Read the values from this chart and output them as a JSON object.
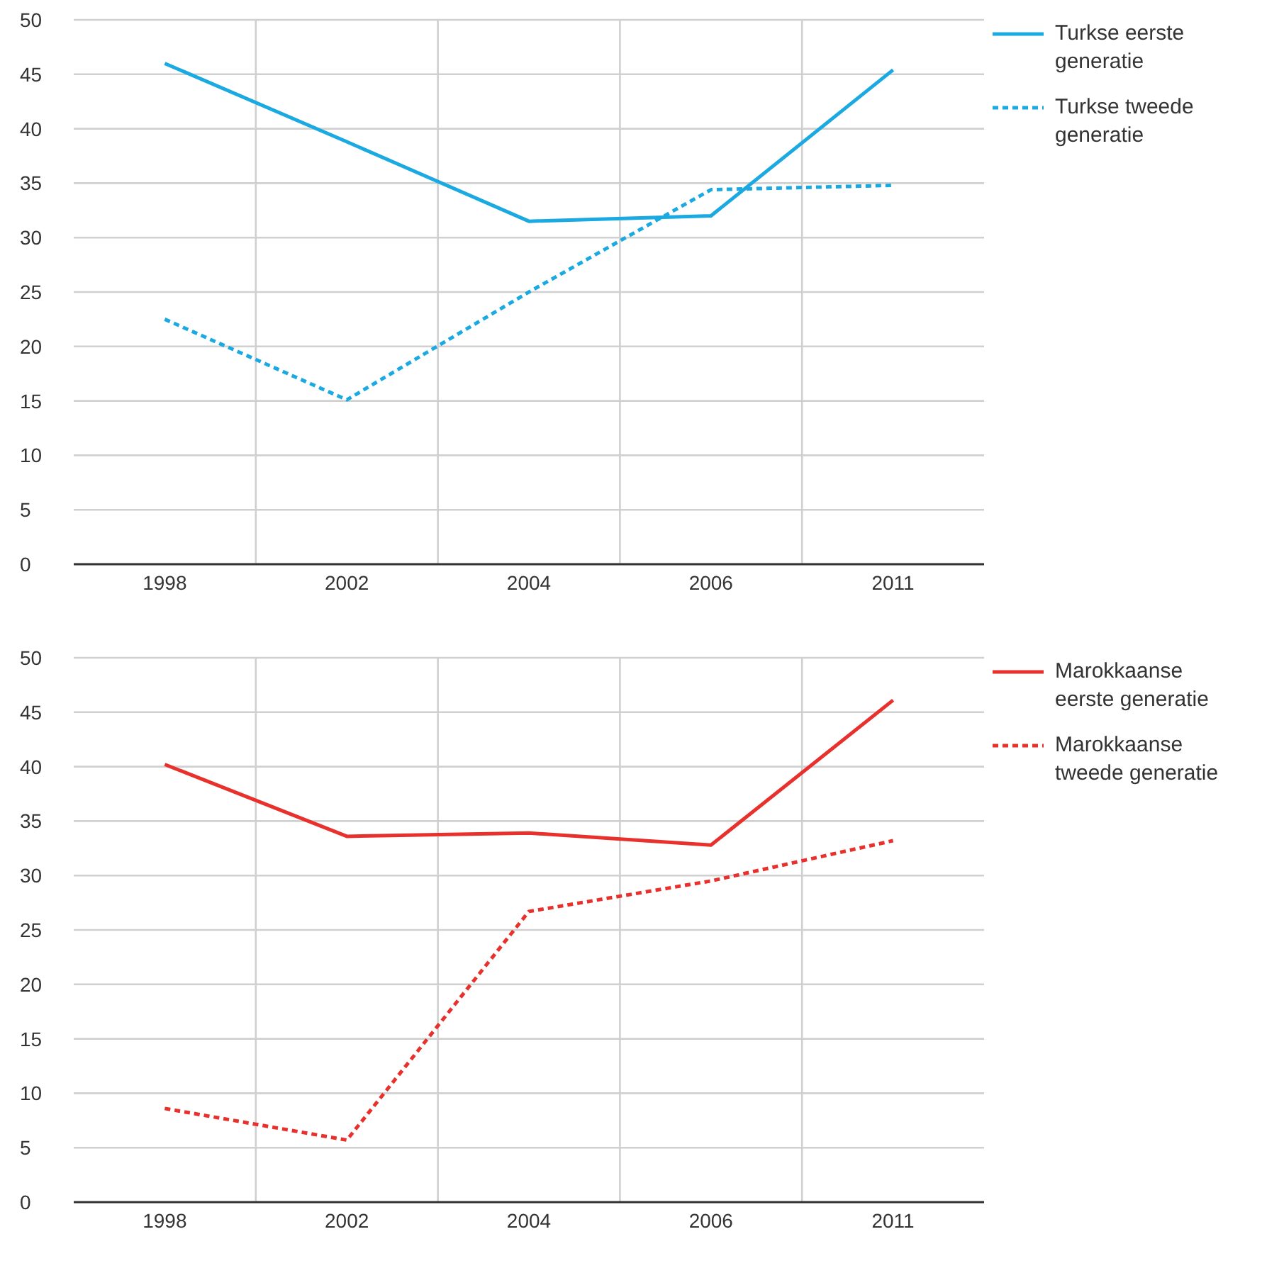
{
  "chart_data": [
    {
      "type": "line",
      "categories": [
        "1998",
        "2002",
        "2004",
        "2006",
        "2011"
      ],
      "ylim": [
        0,
        50
      ],
      "yticks": [
        0,
        5,
        10,
        15,
        20,
        25,
        30,
        35,
        40,
        45,
        50
      ],
      "grid": true,
      "legend": "top right",
      "marker": "none",
      "series": [
        {
          "name": "Turkse eerste generatie",
          "color": "#1ba9e1",
          "line_style": "solid",
          "values": [
            46,
            38.8,
            31.5,
            32,
            45.4
          ]
        },
        {
          "name": "Turkse tweede generatie",
          "color": "#1ba9e1",
          "line_style": "dashed",
          "values": [
            22.5,
            15.1,
            25,
            34.4,
            34.8
          ]
        }
      ]
    },
    {
      "type": "line",
      "categories": [
        "1998",
        "2002",
        "2004",
        "2006",
        "2011"
      ],
      "ylim": [
        0,
        50
      ],
      "yticks": [
        0,
        5,
        10,
        15,
        20,
        25,
        30,
        35,
        40,
        45,
        50
      ],
      "grid": true,
      "legend": "top right",
      "marker": "none",
      "series": [
        {
          "name": "Marokkaanse eerste generatie",
          "color": "#e8302c",
          "line_style": "solid",
          "values": [
            40.2,
            33.6,
            33.9,
            32.8,
            46.1
          ]
        },
        {
          "name": "Marokkaanse tweede generatie",
          "color": "#e8302c",
          "line_style": "dashed",
          "values": [
            8.6,
            5.7,
            26.7,
            29.5,
            33.2
          ]
        }
      ]
    }
  ]
}
